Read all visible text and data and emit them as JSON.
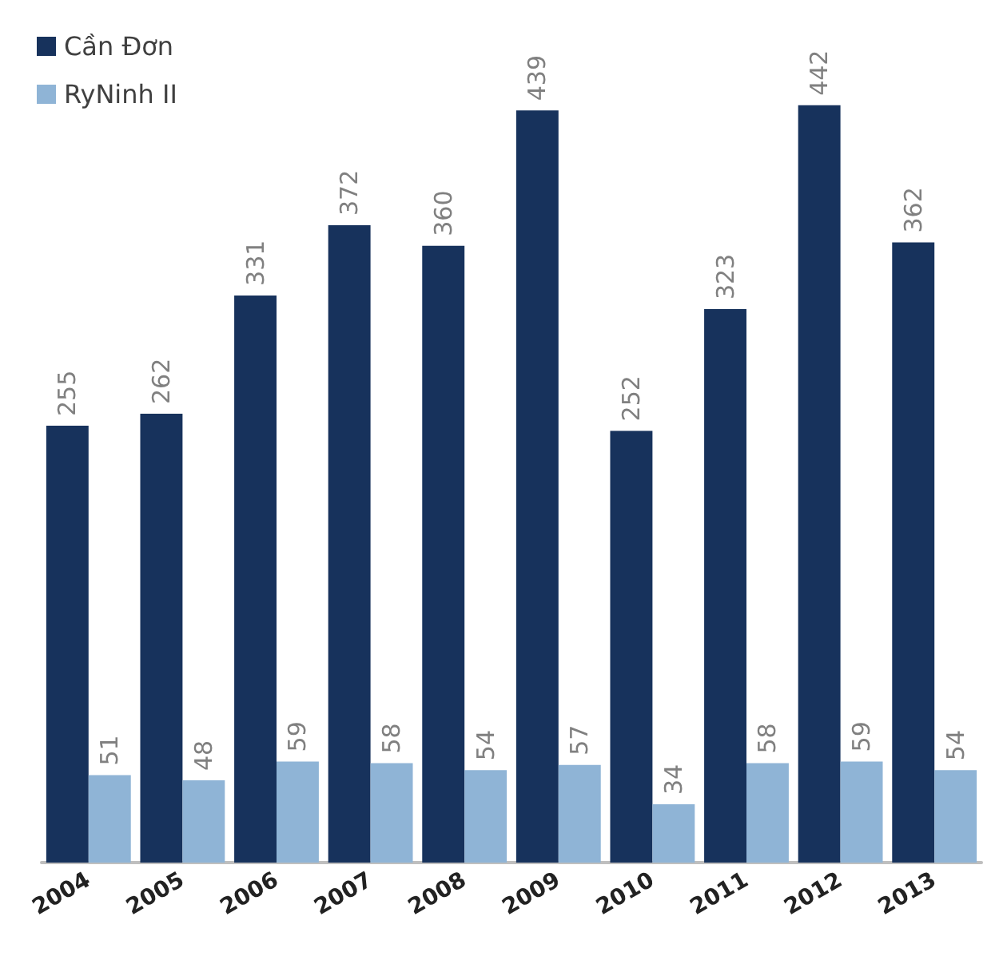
{
  "chart_data": {
    "type": "bar",
    "categories": [
      "2004",
      "2005",
      "2006",
      "2007",
      "2008",
      "2009",
      "2010",
      "2011",
      "2012",
      "2013"
    ],
    "series": [
      {
        "name": "Cần Đơn",
        "color": "#17325c",
        "values": [
          255,
          262,
          331,
          372,
          360,
          439,
          252,
          323,
          442,
          362
        ]
      },
      {
        "name": "RyNinh II",
        "color": "#8fb4d6",
        "values": [
          51,
          48,
          59,
          58,
          54,
          57,
          34,
          58,
          59,
          54
        ]
      }
    ],
    "data_labels": true,
    "legend": "top left",
    "grid": false
  }
}
